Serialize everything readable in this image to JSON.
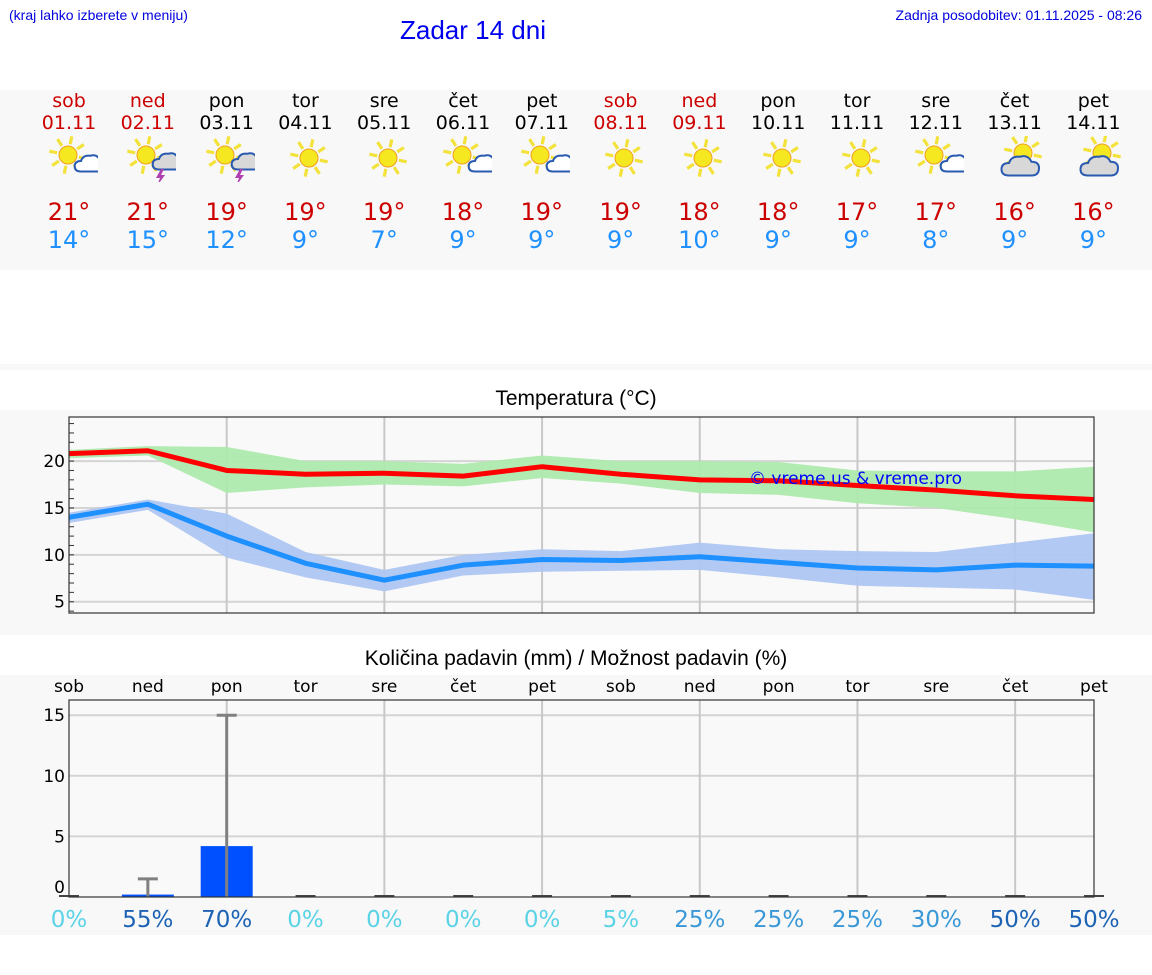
{
  "header": {
    "menu_hint": "(kraj lahko izberete v meniju)",
    "title": "Zadar 14 dni",
    "last_update": "Zadnja posodobitev: 01.11.2025 - 08:26"
  },
  "colors": {
    "weekend": "#cc0000",
    "weekday": "#000000",
    "tmax": "#cc0000",
    "tmin": "#1e90ff",
    "max_line": "#ff0000",
    "max_band": "#aeeaae",
    "min_line": "#1e90ff",
    "min_band": "#aec6f2",
    "precip_bar": "#0050ff",
    "error_bar": "#808080",
    "copyright": "#0000ff"
  },
  "days": [
    {
      "name": "sob",
      "date": "01.11",
      "icon": "partly-cloudy-icon",
      "tmax": "21°",
      "tmin": "14°",
      "weekend": true
    },
    {
      "name": "ned",
      "date": "02.11",
      "icon": "thunderstorm-sun-icon",
      "tmax": "21°",
      "tmin": "15°",
      "weekend": true
    },
    {
      "name": "pon",
      "date": "03.11",
      "icon": "thunderstorm-sun-icon",
      "tmax": "19°",
      "tmin": "12°",
      "weekend": false
    },
    {
      "name": "tor",
      "date": "04.11",
      "icon": "sunny-icon",
      "tmax": "19°",
      "tmin": "9°",
      "weekend": false
    },
    {
      "name": "sre",
      "date": "05.11",
      "icon": "sunny-icon",
      "tmax": "19°",
      "tmin": "7°",
      "weekend": false
    },
    {
      "name": "čet",
      "date": "06.11",
      "icon": "partly-cloudy-icon",
      "tmax": "18°",
      "tmin": "9°",
      "weekend": false
    },
    {
      "name": "pet",
      "date": "07.11",
      "icon": "partly-cloudy-icon",
      "tmax": "19°",
      "tmin": "9°",
      "weekend": false
    },
    {
      "name": "sob",
      "date": "08.11",
      "icon": "sunny-icon",
      "tmax": "19°",
      "tmin": "9°",
      "weekend": true
    },
    {
      "name": "ned",
      "date": "09.11",
      "icon": "sunny-icon",
      "tmax": "18°",
      "tmin": "10°",
      "weekend": true
    },
    {
      "name": "pon",
      "date": "10.11",
      "icon": "sunny-icon",
      "tmax": "18°",
      "tmin": "9°",
      "weekend": false
    },
    {
      "name": "tor",
      "date": "11.11",
      "icon": "sunny-icon",
      "tmax": "17°",
      "tmin": "9°",
      "weekend": false
    },
    {
      "name": "sre",
      "date": "12.11",
      "icon": "partly-cloudy-icon",
      "tmax": "17°",
      "tmin": "8°",
      "weekend": false
    },
    {
      "name": "čet",
      "date": "13.11",
      "icon": "mostly-cloudy-icon",
      "tmax": "16°",
      "tmin": "9°",
      "weekend": false
    },
    {
      "name": "pet",
      "date": "14.11",
      "icon": "mostly-cloudy-icon",
      "tmax": "16°",
      "tmin": "9°",
      "weekend": false
    }
  ],
  "chart_data": [
    {
      "type": "line",
      "title": "Temperatura (°C)",
      "xlabel": "",
      "ylabel": "",
      "ylim": [
        3.8,
        24.7
      ],
      "yticks": [
        5,
        10,
        15,
        20
      ],
      "grid": true,
      "annotation": "© vreme.us & vreme.pro",
      "x": [
        "01.11",
        "02.11",
        "03.11",
        "04.11",
        "05.11",
        "06.11",
        "07.11",
        "08.11",
        "09.11",
        "10.11",
        "11.11",
        "12.11",
        "13.11",
        "14.11"
      ],
      "series": [
        {
          "name": "max",
          "values": [
            20.8,
            21.1,
            19.0,
            18.6,
            18.7,
            18.4,
            19.4,
            18.6,
            18.0,
            17.9,
            17.4,
            16.9,
            16.3,
            15.9
          ],
          "band_upper": [
            21.2,
            21.6,
            21.5,
            20.0,
            20.0,
            19.7,
            20.6,
            20.0,
            20.0,
            19.9,
            19.0,
            18.9,
            18.9,
            19.4
          ],
          "band_lower": [
            20.3,
            20.6,
            16.6,
            17.2,
            17.5,
            17.3,
            18.2,
            17.6,
            16.6,
            16.4,
            15.5,
            15.0,
            13.8,
            12.4
          ]
        },
        {
          "name": "min",
          "values": [
            14.0,
            15.4,
            12.0,
            9.1,
            7.3,
            8.9,
            9.5,
            9.4,
            9.8,
            9.2,
            8.6,
            8.4,
            8.9,
            8.8
          ],
          "band_upper": [
            14.5,
            15.9,
            14.4,
            10.3,
            8.4,
            10.0,
            10.6,
            10.4,
            11.3,
            10.6,
            10.4,
            10.3,
            11.3,
            12.3
          ],
          "band_lower": [
            13.4,
            14.8,
            9.7,
            7.6,
            6.1,
            7.8,
            8.2,
            8.3,
            8.4,
            7.6,
            6.7,
            6.5,
            6.3,
            5.2
          ]
        }
      ]
    },
    {
      "type": "bar",
      "title": "Količina padavin (mm) / Možnost padavin (%)",
      "xlabel": "",
      "ylabel": "",
      "ylim": [
        -0.3,
        16.2
      ],
      "yticks": [
        0,
        5,
        10,
        15
      ],
      "grid": true,
      "categories": [
        "sob",
        "ned",
        "pon",
        "tor",
        "sre",
        "čet",
        "pet",
        "sob",
        "ned",
        "pon",
        "tor",
        "sre",
        "čet",
        "pet"
      ],
      "values": [
        0,
        0.2,
        4.2,
        0,
        0,
        0,
        0,
        0,
        0,
        0,
        0,
        0,
        0,
        0
      ],
      "error_upper": [
        0,
        1.5,
        15.0,
        0,
        0,
        0,
        0,
        0,
        0,
        0,
        0,
        0,
        0,
        0
      ],
      "probability": [
        "0%",
        "55%",
        "70%",
        "0%",
        "0%",
        "0%",
        "0%",
        "5%",
        "25%",
        "25%",
        "25%",
        "30%",
        "50%",
        "50%"
      ],
      "probability_colors": [
        "#5bd3e6",
        "#1d63b5",
        "#1d63b5",
        "#5bd3e6",
        "#5bd3e6",
        "#5bd3e6",
        "#5bd3e6",
        "#5bd3e6",
        "#3a98d6",
        "#3a98d6",
        "#3a98d6",
        "#3a98d6",
        "#1d63b5",
        "#1d63b5"
      ]
    }
  ]
}
